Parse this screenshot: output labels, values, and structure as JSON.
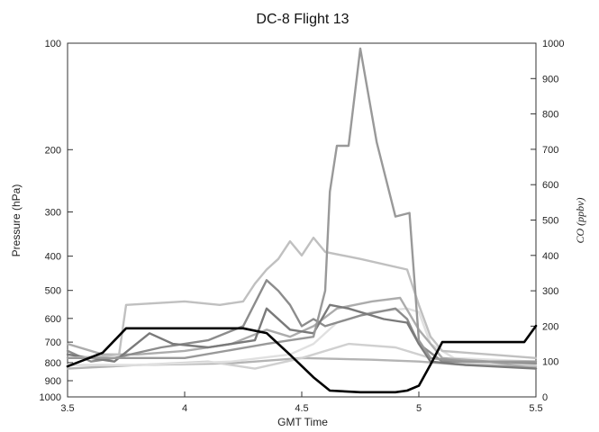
{
  "chart_data": {
    "type": "line",
    "title": "DC-8  Flight 13",
    "xlabel": "GMT Time",
    "ylabel_left": "Pressure (hPa)",
    "ylabel_right": "CO (ppbv)",
    "xlim": [
      3.5,
      5.5
    ],
    "ylim_left": [
      1000,
      100
    ],
    "ylim_right": [
      0,
      1000
    ],
    "yscale_left": "log",
    "x_ticks": [
      "3.5",
      "4",
      "4.5",
      "5",
      "5.5"
    ],
    "y_left_ticks": [
      "100",
      "200",
      "300",
      "400",
      "500",
      "600",
      "700",
      "800",
      "900",
      "1000"
    ],
    "y_right_ticks": [
      "0",
      "100",
      "200",
      "300",
      "400",
      "500",
      "600",
      "700",
      "800",
      "900",
      "1000"
    ],
    "grid": false,
    "series": [
      {
        "axis": "left",
        "color": "#000000",
        "x": [
          3.5,
          3.65,
          3.75,
          4.0,
          4.15,
          4.25,
          4.35,
          4.45,
          4.55,
          4.62,
          4.75,
          4.9,
          4.95,
          5.0,
          5.05,
          5.1,
          5.35,
          5.45,
          5.5
        ],
        "y": [
          820,
          750,
          640,
          640,
          640,
          640,
          660,
          760,
          880,
          960,
          970,
          970,
          960,
          930,
          810,
          700,
          700,
          700,
          630
        ]
      },
      {
        "axis": "right",
        "color": "#999999",
        "x": [
          3.5,
          4.0,
          4.35,
          4.45,
          4.55,
          4.6,
          4.62,
          4.65,
          4.7,
          4.75,
          4.82,
          4.9,
          4.96,
          5.0,
          5.05,
          5.2,
          5.5
        ],
        "y": [
          110,
          110,
          150,
          160,
          170,
          300,
          580,
          710,
          710,
          985,
          720,
          510,
          520,
          160,
          110,
          100,
          100
        ]
      },
      {
        "axis": "right",
        "color": "#c0c0c0",
        "x": [
          3.5,
          3.65,
          3.72,
          3.75,
          4.0,
          4.15,
          4.25,
          4.3,
          4.35,
          4.4,
          4.45,
          4.5,
          4.55,
          4.6,
          4.75,
          4.95,
          5.0,
          5.05,
          5.1,
          5.3,
          5.5
        ],
        "y": [
          110,
          115,
          120,
          260,
          270,
          260,
          270,
          320,
          360,
          390,
          440,
          400,
          450,
          410,
          390,
          360,
          260,
          170,
          130,
          120,
          110
        ]
      },
      {
        "axis": "right",
        "color": "#7a7a7a",
        "x": [
          3.5,
          3.6,
          3.7,
          3.85,
          3.95,
          4.1,
          4.3,
          4.35,
          4.45,
          4.55,
          4.62,
          4.7,
          4.85,
          4.95,
          5.0,
          5.05,
          5.2,
          5.5
        ],
        "y": [
          120,
          110,
          100,
          180,
          150,
          140,
          160,
          250,
          190,
          180,
          260,
          250,
          220,
          210,
          150,
          100,
          90,
          80
        ]
      },
      {
        "axis": "right",
        "color": "#8c8c8c",
        "x": [
          3.5,
          3.6,
          3.7,
          3.9,
          4.1,
          4.25,
          4.35,
          4.4,
          4.45,
          4.5,
          4.55,
          4.6,
          4.75,
          4.9,
          4.95,
          5.0,
          5.1,
          5.3,
          5.5
        ],
        "y": [
          130,
          100,
          110,
          140,
          160,
          200,
          330,
          300,
          260,
          200,
          220,
          200,
          230,
          250,
          220,
          150,
          100,
          100,
          95
        ]
      },
      {
        "axis": "right",
        "color": "#acacac",
        "x": [
          3.5,
          3.65,
          3.8,
          4.0,
          4.2,
          4.35,
          4.45,
          4.55,
          4.65,
          4.8,
          4.92,
          5.0,
          5.1,
          5.3,
          5.5
        ],
        "y": [
          150,
          120,
          120,
          130,
          150,
          190,
          170,
          200,
          250,
          270,
          280,
          190,
          110,
          100,
          80
        ]
      },
      {
        "axis": "right",
        "color": "#e0e0e0",
        "x": [
          3.5,
          3.8,
          4.2,
          4.45,
          4.55,
          4.65,
          4.8,
          4.95,
          5.0,
          5.05,
          5.15,
          5.5
        ],
        "y": [
          90,
          90,
          100,
          120,
          150,
          210,
          240,
          250,
          240,
          150,
          110,
          100
        ]
      },
      {
        "axis": "right",
        "color": "#d0d0d0",
        "x": [
          3.5,
          3.8,
          4.1,
          4.3,
          4.5,
          4.7,
          4.9,
          5.05,
          5.2,
          5.5
        ],
        "y": [
          90,
          90,
          100,
          80,
          110,
          150,
          140,
          110,
          95,
          90
        ]
      },
      {
        "axis": "right",
        "color": "#b4b4b4",
        "x": [
          3.5,
          3.8,
          4.2,
          4.5,
          4.8,
          5.0,
          5.2,
          5.5
        ],
        "y": [
          80,
          90,
          95,
          110,
          105,
          100,
          90,
          85
        ]
      }
    ]
  }
}
